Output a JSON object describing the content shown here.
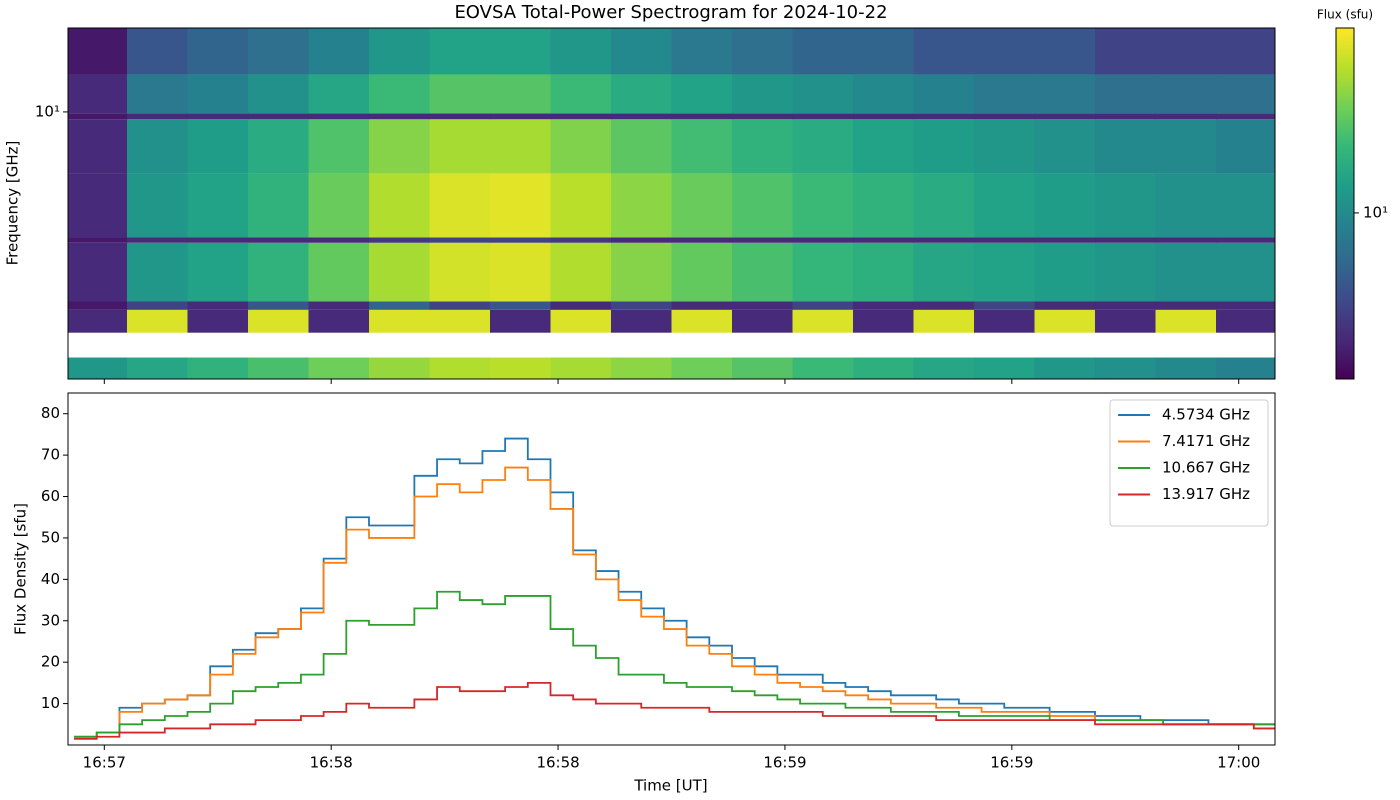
{
  "chart_data": [
    {
      "type": "heatmap",
      "title": "EOVSA Total-Power Spectrogram for 2024-10-22",
      "y_label": "Frequency [GHz]",
      "y_scale": "log",
      "xlim": [
        55.2,
        214.8
      ],
      "ylim": [
        1.54,
        18
      ],
      "yticks": [
        {
          "value": 10,
          "label": "10¹"
        }
      ],
      "xbins": [
        55,
        63,
        71,
        79,
        87,
        95,
        103,
        111,
        119,
        127,
        135,
        143,
        151,
        159,
        167,
        175,
        183,
        191,
        199,
        207,
        215
      ],
      "ybins": [
        1.54,
        1.79,
        2.13,
        2.5,
        2.65,
        4.0,
        4.15,
        6.5,
        9.5,
        9.9,
        13,
        18
      ],
      "z": [
        [
          12,
          15,
          18,
          22,
          28,
          35,
          40,
          42,
          38,
          33,
          28,
          24,
          20,
          17,
          15,
          14,
          12,
          11,
          10,
          9
        ],
        [
          null,
          null,
          null,
          null,
          null,
          null,
          null,
          null,
          null,
          null,
          null,
          null,
          null,
          null,
          null,
          null,
          null,
          null,
          null,
          null
        ],
        [
          3,
          50,
          3,
          50,
          3,
          50,
          50,
          3,
          50,
          3,
          50,
          3,
          50,
          3,
          50,
          3,
          50,
          3,
          50,
          3
        ],
        [
          2.5,
          4,
          3,
          5,
          3,
          6,
          4,
          5,
          3,
          4,
          3,
          3,
          4,
          3,
          3,
          4,
          3,
          3,
          3,
          3
        ],
        [
          3,
          12,
          14,
          18,
          26,
          38,
          48,
          50,
          40,
          32,
          26,
          22,
          19,
          17,
          15,
          14,
          13,
          12,
          11,
          11
        ],
        [
          2.5,
          3,
          3,
          3,
          3,
          3.5,
          4,
          4,
          3.5,
          3,
          3,
          3,
          3,
          3,
          3,
          3,
          3,
          3,
          3,
          3
        ],
        [
          3,
          12,
          14,
          18,
          27,
          40,
          50,
          52,
          42,
          33,
          27,
          23,
          20,
          18,
          16,
          14,
          13,
          12,
          11,
          11
        ],
        [
          3,
          11,
          13,
          16,
          23,
          32,
          38,
          38,
          31,
          25,
          21,
          18,
          16,
          14,
          13,
          12,
          11,
          10,
          10,
          9
        ],
        [
          2.5,
          3,
          3,
          3,
          3,
          3,
          3,
          3,
          3,
          3,
          3,
          3,
          3,
          3,
          3,
          3,
          3,
          3,
          3,
          3
        ],
        [
          3,
          8,
          9,
          11,
          15,
          20,
          24,
          24,
          20,
          16,
          14,
          12,
          11,
          10,
          9,
          8,
          8,
          7,
          7,
          7
        ],
        [
          2.5,
          5,
          6,
          7,
          9,
          12,
          14,
          14,
          12,
          10,
          8,
          7,
          6,
          6,
          5,
          5,
          5,
          4,
          4,
          4
        ]
      ],
      "colormap": "viridis",
      "color_scale": "log",
      "clim": [
        2,
        60
      ],
      "colorbar_label": "Flux (sfu)",
      "cticks": [
        {
          "value": 10,
          "label": "10¹"
        }
      ]
    },
    {
      "type": "line",
      "drawstyle": "steps",
      "x_label": "Time [UT]",
      "y_label": "Flux Density [sfu]",
      "xlim": [
        55.2,
        214.8
      ],
      "ylim": [
        0,
        85
      ],
      "xticks": [
        {
          "value": 60,
          "label": "16:57"
        },
        {
          "value": 90,
          "label": "16:58"
        },
        {
          "value": 120,
          "label": "16:58"
        },
        {
          "value": 150,
          "label": "16:59"
        },
        {
          "value": 180,
          "label": "16:59"
        },
        {
          "value": 210,
          "label": "17:00"
        }
      ],
      "yticks": [
        10,
        20,
        30,
        40,
        50,
        60,
        70,
        80
      ],
      "legend": "upper right",
      "x": [
        56,
        59,
        62,
        65,
        68,
        71,
        74,
        77,
        80,
        83,
        86,
        89,
        92,
        95,
        98,
        101,
        104,
        107,
        110,
        113,
        116,
        119,
        122,
        125,
        128,
        131,
        134,
        137,
        140,
        143,
        146,
        149,
        152,
        155,
        158,
        161,
        164,
        167,
        170,
        173,
        176,
        179,
        182,
        185,
        188,
        191,
        194,
        197,
        200,
        203,
        206,
        209,
        212
      ],
      "series": [
        {
          "name": "4.5734 GHz",
          "color": "#1f77b4",
          "values": [
            2,
            3,
            9,
            10,
            11,
            12,
            19,
            23,
            27,
            28,
            33,
            45,
            55,
            53,
            53,
            65,
            69,
            68,
            71,
            74,
            69,
            61,
            47,
            42,
            37,
            33,
            30,
            26,
            24,
            21,
            19,
            17,
            17,
            15,
            14,
            13,
            12,
            12,
            11,
            10,
            10,
            9,
            9,
            8,
            8,
            7,
            7,
            6,
            6,
            6,
            5,
            5,
            5
          ]
        },
        {
          "name": "7.4171 GHz",
          "color": "#ff7f0e",
          "values": [
            2,
            3,
            8,
            10,
            11,
            12,
            17,
            22,
            26,
            28,
            32,
            44,
            52,
            50,
            50,
            60,
            63,
            61,
            64,
            67,
            64,
            57,
            46,
            40,
            35,
            31,
            28,
            24,
            22,
            19,
            17,
            15,
            14,
            13,
            12,
            11,
            10,
            10,
            9,
            9,
            8,
            8,
            8,
            7,
            7,
            6,
            6,
            6,
            5,
            5,
            5,
            5,
            4
          ]
        },
        {
          "name": "10.667 GHz",
          "color": "#2ca02c",
          "values": [
            2,
            3,
            5,
            6,
            7,
            8,
            10,
            13,
            14,
            15,
            17,
            22,
            30,
            29,
            29,
            33,
            37,
            35,
            34,
            36,
            36,
            28,
            24,
            21,
            17,
            17,
            15,
            14,
            14,
            13,
            12,
            11,
            10,
            10,
            9,
            9,
            8,
            8,
            8,
            7,
            7,
            7,
            7,
            6,
            6,
            6,
            6,
            6,
            5,
            5,
            5,
            5,
            5
          ]
        },
        {
          "name": "13.917 GHz",
          "color": "#d62728",
          "values": [
            1.5,
            2,
            3,
            3,
            4,
            4,
            5,
            5,
            6,
            6,
            7,
            8,
            10,
            9,
            9,
            11,
            14,
            13,
            13,
            14,
            15,
            12,
            11,
            10,
            10,
            9,
            9,
            9,
            8,
            8,
            8,
            8,
            8,
            7,
            7,
            7,
            7,
            7,
            6,
            6,
            6,
            6,
            6,
            6,
            6,
            5,
            5,
            5,
            5,
            5,
            5,
            5,
            4
          ]
        }
      ]
    }
  ]
}
